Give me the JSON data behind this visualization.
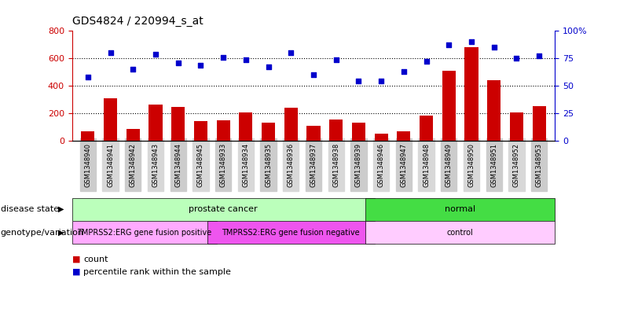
{
  "title": "GDS4824 / 220994_s_at",
  "samples": [
    "GSM1348940",
    "GSM1348941",
    "GSM1348942",
    "GSM1348943",
    "GSM1348944",
    "GSM1348945",
    "GSM1348933",
    "GSM1348934",
    "GSM1348935",
    "GSM1348936",
    "GSM1348937",
    "GSM1348938",
    "GSM1348939",
    "GSM1348946",
    "GSM1348947",
    "GSM1348948",
    "GSM1348949",
    "GSM1348950",
    "GSM1348951",
    "GSM1348952",
    "GSM1348953"
  ],
  "counts": [
    70,
    310,
    85,
    260,
    245,
    140,
    150,
    205,
    130,
    240,
    110,
    155,
    130,
    50,
    65,
    185,
    510,
    680,
    440,
    205,
    250
  ],
  "percentiles": [
    58,
    80,
    65,
    79,
    71,
    69,
    76,
    74,
    67,
    80,
    60,
    74,
    54,
    54,
    63,
    72,
    87,
    90,
    85,
    75,
    77
  ],
  "ylim_left": [
    0,
    800
  ],
  "ylim_right": [
    0,
    100
  ],
  "yticks_left": [
    0,
    200,
    400,
    600,
    800
  ],
  "yticks_right": [
    0,
    25,
    50,
    75,
    100
  ],
  "bar_color": "#cc0000",
  "dot_color": "#0000cc",
  "disease_state_groups": [
    {
      "label": "prostate cancer",
      "start": 0,
      "end": 13,
      "color": "#bbffbb"
    },
    {
      "label": "normal",
      "start": 13,
      "end": 21,
      "color": "#44dd44"
    }
  ],
  "genotype_groups": [
    {
      "label": "TMPRSS2:ERG gene fusion positive",
      "start": 0,
      "end": 6,
      "color": "#ffaaff"
    },
    {
      "label": "TMPRSS2:ERG gene fusion negative",
      "start": 6,
      "end": 13,
      "color": "#ee55ee"
    },
    {
      "label": "control",
      "start": 13,
      "end": 21,
      "color": "#ffccff"
    }
  ],
  "row1_label": "disease state",
  "row2_label": "genotype/variation",
  "legend_count_label": "count",
  "legend_pct_label": "percentile rank within the sample",
  "tick_label_color_left": "#cc0000",
  "tick_label_color_right": "#0000cc"
}
